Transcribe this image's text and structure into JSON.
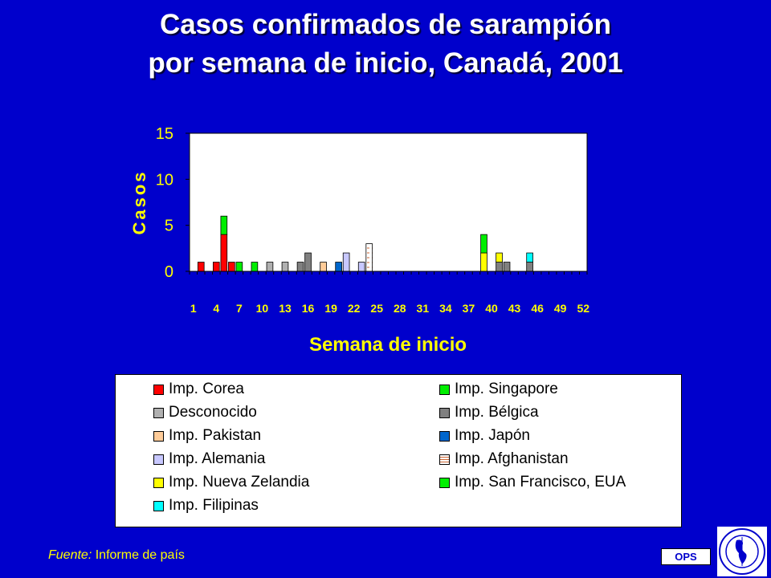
{
  "title": {
    "line1": "Casos confirmados de sarampión",
    "line2": "por semana de inicio, Canadá, 2001"
  },
  "chart_data": {
    "type": "bar",
    "stacked": true,
    "xlabel": "Semana de inicio",
    "ylabel": "Casos",
    "ylim": [
      0,
      15
    ],
    "yticks": [
      0,
      5,
      10,
      15
    ],
    "xlim": [
      1,
      52
    ],
    "xticks": [
      1,
      4,
      7,
      10,
      13,
      16,
      19,
      22,
      25,
      28,
      31,
      34,
      37,
      40,
      43,
      46,
      49,
      52
    ],
    "grid": false,
    "legend_position": "bottom",
    "series": [
      {
        "name": "Imp. Corea",
        "color": "#FF0000",
        "points": [
          [
            2,
            1
          ],
          [
            4,
            1
          ],
          [
            5,
            4
          ],
          [
            6,
            1
          ]
        ]
      },
      {
        "name": "Imp. Singapore",
        "color": "#00EE00",
        "points": [
          [
            5,
            2
          ],
          [
            7,
            1
          ],
          [
            9,
            1
          ]
        ]
      },
      {
        "name": "Desconocido",
        "color": "#B0B0B0",
        "points": [
          [
            11,
            1
          ],
          [
            13,
            1
          ]
        ]
      },
      {
        "name": "Imp. Bélgica",
        "color": "#808080",
        "points": [
          [
            15,
            1
          ],
          [
            16,
            2
          ],
          [
            41,
            1
          ],
          [
            42,
            1
          ],
          [
            45,
            1
          ]
        ]
      },
      {
        "name": "Imp. Pakistan",
        "color": "#FFCC99",
        "points": [
          [
            18,
            1
          ]
        ]
      },
      {
        "name": "Imp. Japón",
        "color": "#0066CC",
        "points": [
          [
            20,
            1
          ]
        ]
      },
      {
        "name": "Imp. Alemania",
        "color": "#C8C8FF",
        "points": [
          [
            21,
            2
          ],
          [
            23,
            1
          ]
        ]
      },
      {
        "name": "Imp. Afghanistan",
        "color": "#FFFFFF",
        "pattern": "dashed-box",
        "points": [
          [
            24,
            3
          ]
        ]
      },
      {
        "name": "Imp. Nueva Zelandia",
        "color": "#FFFF00",
        "points": [
          [
            39,
            2
          ],
          [
            41,
            1
          ]
        ]
      },
      {
        "name": "Imp. San Francisco, EUA",
        "color": "#00EE00",
        "points": [
          [
            39,
            2
          ]
        ]
      },
      {
        "name": "Imp. Filipinas",
        "color": "#00FFFF",
        "points": [
          [
            45,
            1
          ]
        ]
      }
    ]
  },
  "legend_items": [
    "Imp. Corea",
    "Imp. Singapore",
    "Desconocido",
    "Imp. Bélgica",
    "Imp. Pakistan",
    "Imp. Japón",
    "Imp. Alemania",
    "Imp. Afghanistan",
    "Imp. Nueva Zelandia",
    "Imp. San Francisco, EUA",
    "Imp. Filipinas"
  ],
  "source": {
    "label": "Fuente:",
    "text": "Informe de país"
  },
  "badge": "OPS",
  "colors": {
    "background": "#0000CC",
    "title": "#FFFFFF",
    "axis_text": "#FFFF00",
    "plot_bg": "#FFFFFF"
  }
}
